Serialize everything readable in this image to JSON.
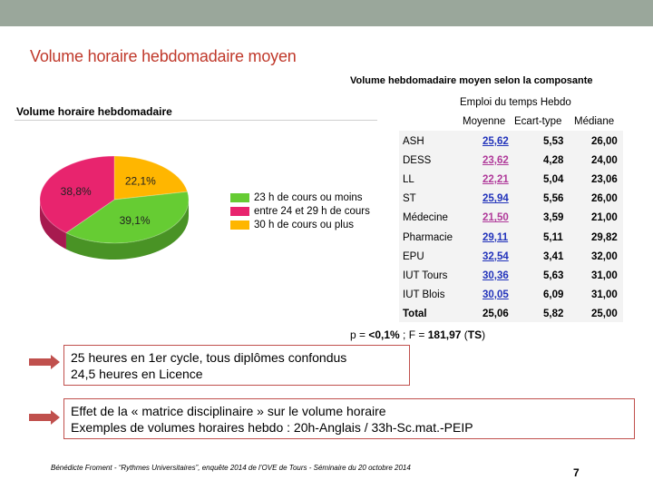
{
  "slide": {
    "title": "Volume horaire hebdomadaire moyen",
    "page_number": "7",
    "footer": "Bénédicte Froment - “Rythmes Universitaires”, enquête 2014 de l’OVE de Tours - Séminaire du 20 octobre 2014"
  },
  "chart_data": {
    "type": "pie",
    "title": "Volume horaire hebdomadaire",
    "slices": [
      {
        "label": "23 h de cours ou moins",
        "value": 39.1,
        "display": "39,1%",
        "color": "#66cc33"
      },
      {
        "label": "entre 24 et 29 h de cours",
        "value": 38.8,
        "display": "38,8%",
        "color": "#e8246e"
      },
      {
        "label": "30 h de cours ou plus",
        "value": 22.1,
        "display": "22,1%",
        "color": "#ffb600"
      }
    ],
    "legend_position": "right"
  },
  "table": {
    "title": "Volume hebdomadaire moyen selon la composante",
    "subtitle": "Emploi du temps Hebdo",
    "columns": [
      "Moyenne",
      "Ecart-type",
      "Médiane"
    ],
    "rows": [
      {
        "name": "ASH",
        "mean": "25,62",
        "sd": "5,53",
        "median": "26,00",
        "mean_color": "blue"
      },
      {
        "name": "DESS",
        "mean": "23,62",
        "sd": "4,28",
        "median": "24,00",
        "mean_color": "magenta"
      },
      {
        "name": "LL",
        "mean": "22,21",
        "sd": "5,04",
        "median": "23,06",
        "mean_color": "magenta"
      },
      {
        "name": "ST",
        "mean": "25,94",
        "sd": "5,56",
        "median": "26,00",
        "mean_color": "blue"
      },
      {
        "name": "Médecine",
        "mean": "21,50",
        "sd": "3,59",
        "median": "21,00",
        "mean_color": "magenta"
      },
      {
        "name": "Pharmacie",
        "mean": "29,11",
        "sd": "5,11",
        "median": "29,82",
        "mean_color": "blue"
      },
      {
        "name": "EPU",
        "mean": "32,54",
        "sd": "3,41",
        "median": "32,00",
        "mean_color": "blue"
      },
      {
        "name": "IUT Tours",
        "mean": "30,36",
        "sd": "5,63",
        "median": "31,00",
        "mean_color": "blue"
      },
      {
        "name": "IUT Blois",
        "mean": "30,05",
        "sd": "6,09",
        "median": "31,00",
        "mean_color": "blue"
      },
      {
        "name": "Total",
        "mean": "25,06",
        "sd": "5,82",
        "median": "25,00",
        "mean_color": "black"
      }
    ],
    "p_prefix": "p = ",
    "p_value": "<0,1%",
    "f_prefix": " ; F = ",
    "f_value": "181,97",
    "ts_open": " (",
    "ts": "TS",
    "ts_close": ")"
  },
  "boxes": {
    "box1": {
      "line1": "25 heures en 1er cycle, tous diplômes confondus",
      "line2": "24,5 heures en Licence"
    },
    "box2": {
      "line1": "Effet de la « matrice disciplinaire » sur le volume horaire",
      "line2": "Exemples de volumes horaires hebdo : 20h-Anglais / 33h-Sc.mat.-PEIP"
    }
  },
  "colors": {
    "title_red": "#c0392b",
    "arrow": "#c0504d",
    "top_bar": "#9aa79b"
  }
}
